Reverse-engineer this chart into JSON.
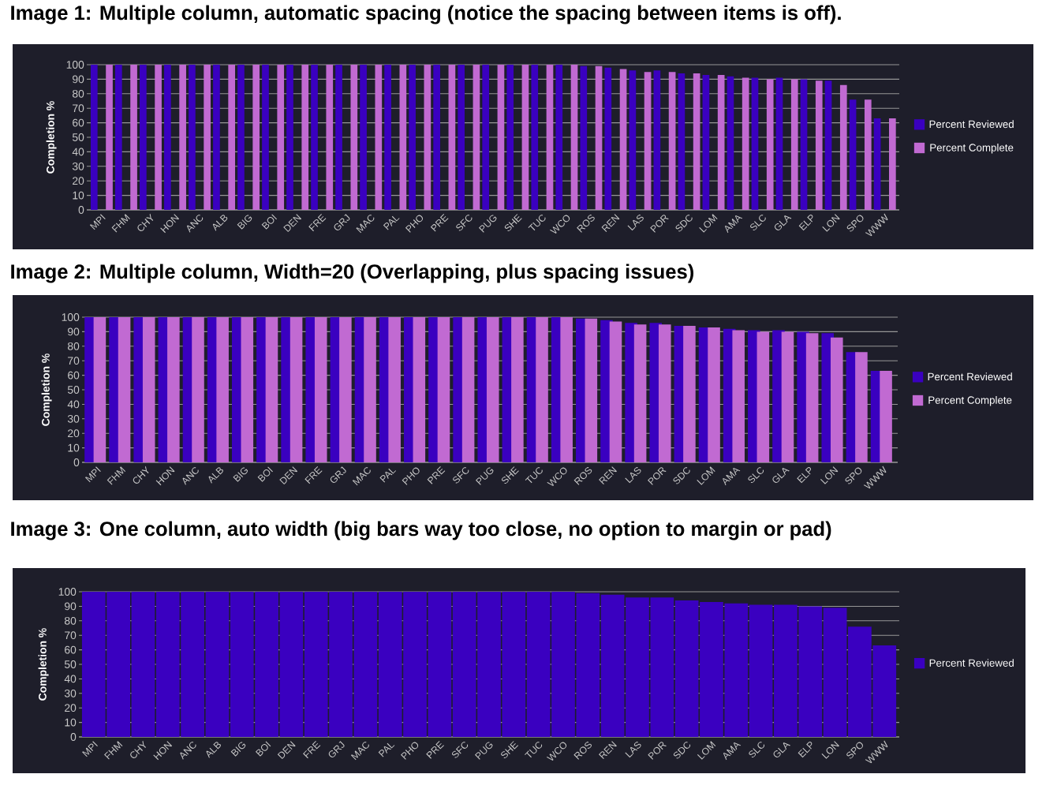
{
  "chart_data": [
    {
      "type": "bar",
      "title": "Image 1: Multiple column, automatic spacing (notice the spacing between items is off).",
      "ylabel": "Completion %",
      "categories": [
        "MPI",
        "FHM",
        "CHY",
        "HON",
        "ANC",
        "ALB",
        "BIG",
        "BOI",
        "DEN",
        "FRE",
        "GRJ",
        "MAC",
        "PAL",
        "PHO",
        "PRE",
        "SFC",
        "PUG",
        "SHE",
        "TUC",
        "WCO",
        "ROS",
        "REN",
        "LAS",
        "POR",
        "SDC",
        "LOM",
        "AMA",
        "SLC",
        "GLA",
        "ELP",
        "LON",
        "SPO",
        "WWW"
      ],
      "series": [
        {
          "name": "Percent Reviewed",
          "color": "#3a00c0",
          "values": [
            100,
            100,
            100,
            100,
            100,
            100,
            100,
            100,
            100,
            100,
            100,
            100,
            100,
            100,
            100,
            100,
            100,
            100,
            100,
            100,
            99,
            98,
            96,
            96,
            94,
            93,
            92,
            91,
            91,
            90,
            89,
            76,
            63
          ]
        },
        {
          "name": "Percent Complete",
          "color": "#c16ad2",
          "values": [
            100,
            100,
            100,
            100,
            100,
            100,
            100,
            100,
            100,
            100,
            100,
            100,
            100,
            100,
            100,
            100,
            100,
            100,
            100,
            100,
            99,
            97,
            95,
            95,
            94,
            93,
            91,
            90,
            90,
            89,
            86,
            76,
            63
          ]
        }
      ],
      "ylim": [
        0,
        100
      ],
      "yticks": [
        0,
        10,
        20,
        30,
        40,
        50,
        60,
        70,
        80,
        90,
        100
      ],
      "grid": "y",
      "legend": "right"
    },
    {
      "type": "bar",
      "title": "Image 2: Multiple column, Width=20 (Overlapping, plus spacing issues)",
      "ylabel": "Completion %",
      "categories": [
        "MPI",
        "FHM",
        "CHY",
        "HON",
        "ANC",
        "ALB",
        "BIG",
        "BOI",
        "DEN",
        "FRE",
        "GRJ",
        "MAC",
        "PAL",
        "PHO",
        "PRE",
        "SFC",
        "PUG",
        "SHE",
        "TUC",
        "WCO",
        "ROS",
        "REN",
        "LAS",
        "POR",
        "SDC",
        "LOM",
        "AMA",
        "SLC",
        "GLA",
        "ELP",
        "LON",
        "SPO",
        "WWW"
      ],
      "series": [
        {
          "name": "Percent Reviewed",
          "color": "#3a00c0",
          "values": [
            100,
            100,
            100,
            100,
            100,
            100,
            100,
            100,
            100,
            100,
            100,
            100,
            100,
            100,
            100,
            100,
            100,
            100,
            100,
            100,
            99,
            98,
            96,
            96,
            94,
            93,
            92,
            91,
            91,
            90,
            89,
            76,
            63
          ]
        },
        {
          "name": "Percent Complete",
          "color": "#c16ad2",
          "values": [
            100,
            100,
            100,
            100,
            100,
            100,
            100,
            100,
            100,
            100,
            100,
            100,
            100,
            100,
            100,
            100,
            100,
            100,
            100,
            100,
            99,
            97,
            95,
            95,
            94,
            93,
            91,
            90,
            90,
            89,
            86,
            76,
            63
          ]
        }
      ],
      "ylim": [
        0,
        100
      ],
      "yticks": [
        0,
        10,
        20,
        30,
        40,
        50,
        60,
        70,
        80,
        90,
        100
      ],
      "grid": "y",
      "legend": "right"
    },
    {
      "type": "bar",
      "title": "Image 3: One column, auto width (big bars way too close, no option to margin or pad)",
      "ylabel": "Completion %",
      "categories": [
        "MPI",
        "FHM",
        "CHY",
        "HON",
        "ANC",
        "ALB",
        "BIG",
        "BOI",
        "DEN",
        "FRE",
        "GRJ",
        "MAC",
        "PAL",
        "PHO",
        "PRE",
        "SFC",
        "PUG",
        "SHE",
        "TUC",
        "WCO",
        "ROS",
        "REN",
        "LAS",
        "POR",
        "SDC",
        "LOM",
        "AMA",
        "SLC",
        "GLA",
        "ELP",
        "LON",
        "SPO",
        "WWW"
      ],
      "series": [
        {
          "name": "Percent Reviewed",
          "color": "#3a00c0",
          "values": [
            100,
            100,
            100,
            100,
            100,
            100,
            100,
            100,
            100,
            100,
            100,
            100,
            100,
            100,
            100,
            100,
            100,
            100,
            100,
            100,
            99,
            98,
            96,
            96,
            94,
            93,
            92,
            91,
            91,
            90,
            89,
            76,
            63
          ]
        }
      ],
      "ylim": [
        0,
        100
      ],
      "yticks": [
        0,
        10,
        20,
        30,
        40,
        50,
        60,
        70,
        80,
        90,
        100
      ],
      "grid": "y",
      "legend": "right"
    }
  ]
}
